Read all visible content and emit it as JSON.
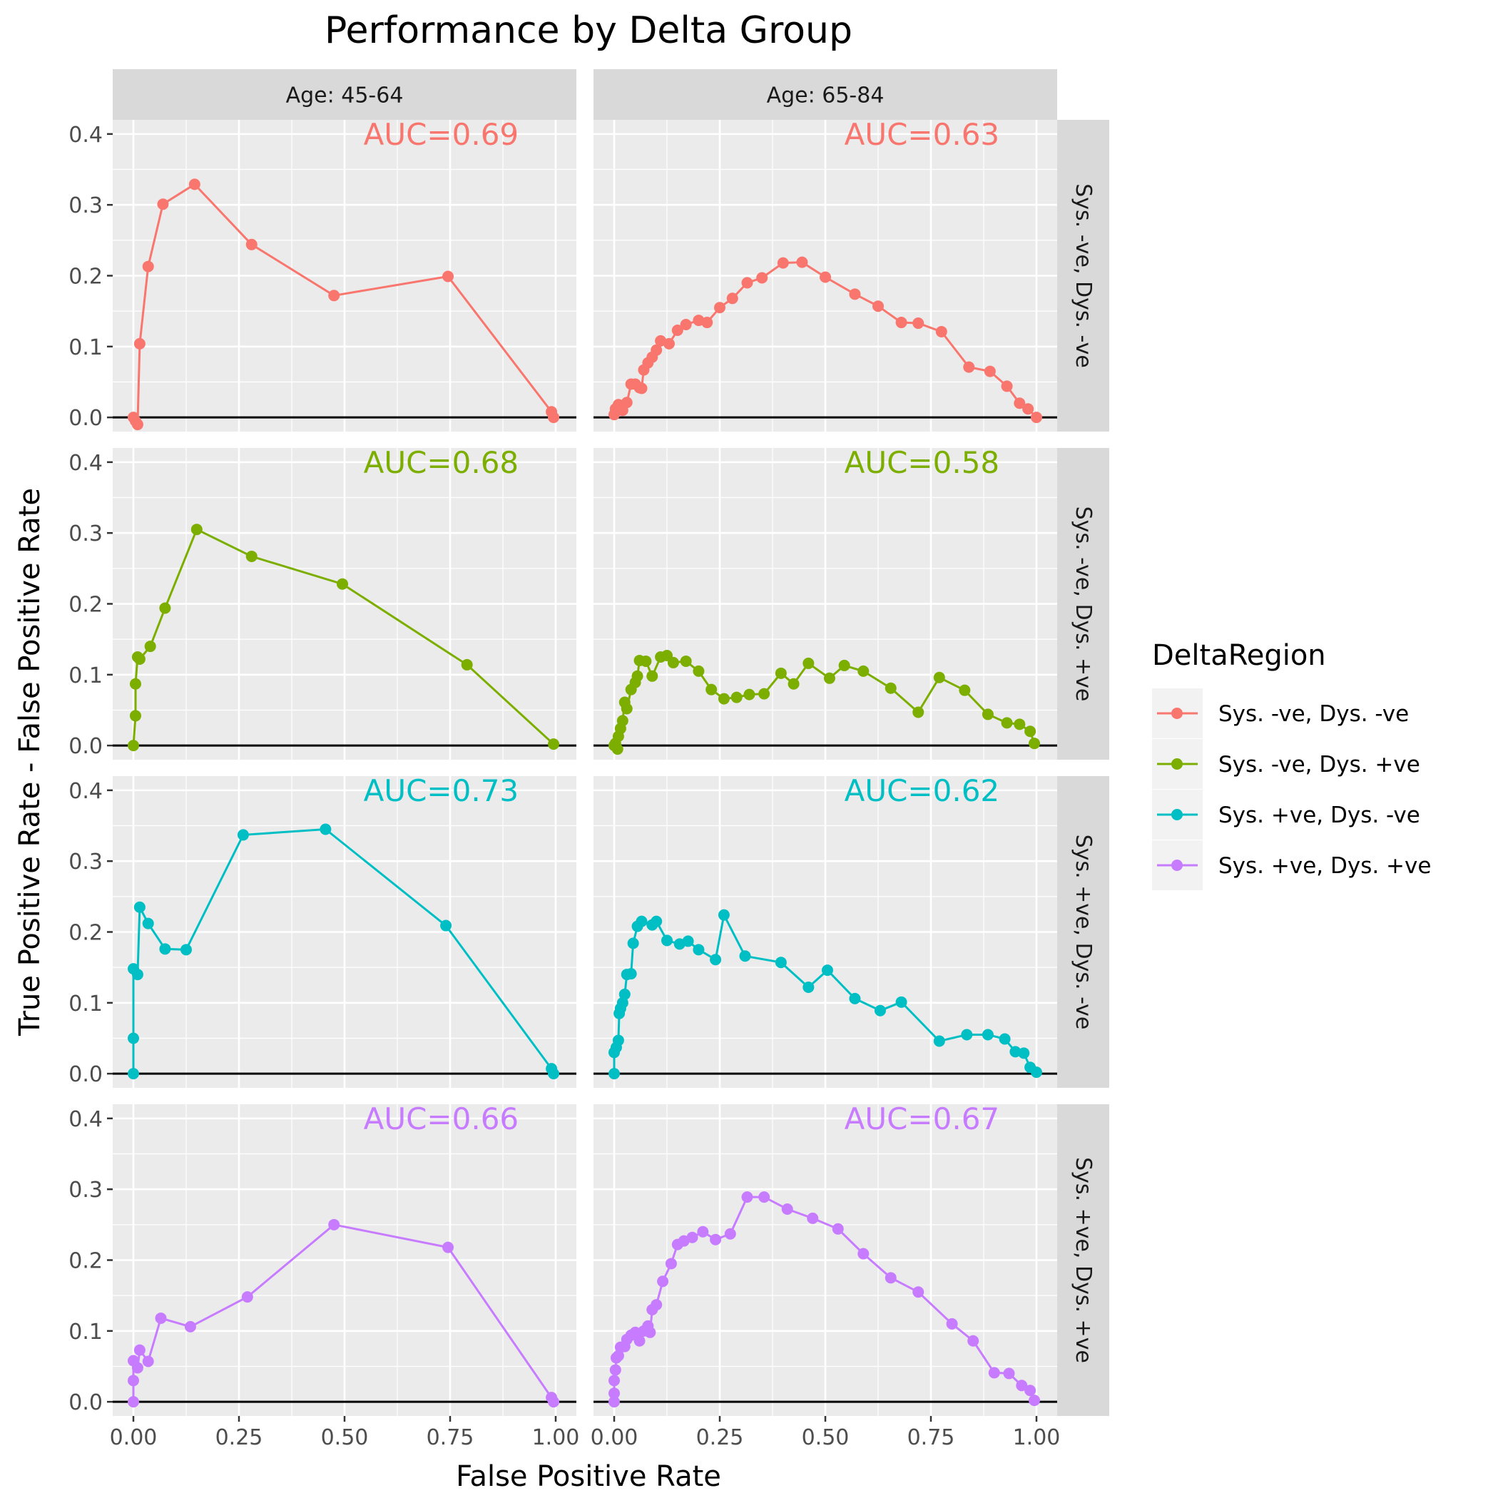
{
  "chart_data": {
    "type": "line",
    "title": "Performance by Delta Group",
    "xlabel": "False Positive Rate",
    "ylabel": "True Positive Rate - False Positive Rate",
    "xlim": [
      0,
      1
    ],
    "ylim": [
      -0.02,
      0.42
    ],
    "x_ticks": [
      "0.00",
      "0.25",
      "0.50",
      "0.75",
      "1.00"
    ],
    "y_ticks": [
      "0.0",
      "0.1",
      "0.2",
      "0.3",
      "0.4"
    ],
    "grid": true,
    "reference_line_y": 0,
    "facet_columns": [
      "Age: 45-64",
      "Age: 65-84"
    ],
    "facet_rows": [
      "Sys. -ve, Dys. -ve",
      "Sys. -ve, Dys. +ve",
      "Sys. +ve, Dys. -ve",
      "Sys. +ve, Dys. +ve"
    ],
    "legend": {
      "title": "DeltaRegion",
      "placement": "right",
      "entries": [
        {
          "label": "Sys. -ve, Dys. -ve",
          "color": "#F8766D"
        },
        {
          "label": "Sys. -ve, Dys. +ve",
          "color": "#7CAE00"
        },
        {
          "label": "Sys. +ve, Dys. -ve",
          "color": "#00BFC4"
        },
        {
          "label": "Sys. +ve, Dys. +ve",
          "color": "#C77CFF"
        }
      ]
    },
    "panels": [
      {
        "row": 0,
        "col": 0,
        "auc": "AUC=0.69",
        "points": [
          [
            0,
            0
          ],
          [
            0.005,
            -0.005
          ],
          [
            0.01,
            -0.01
          ],
          [
            0.015,
            0.104
          ],
          [
            0.035,
            0.213
          ],
          [
            0.07,
            0.301
          ],
          [
            0.145,
            0.329
          ],
          [
            0.28,
            0.244
          ],
          [
            0.475,
            0.172
          ],
          [
            0.745,
            0.199
          ],
          [
            0.99,
            0.008
          ],
          [
            0.995,
            0
          ]
        ]
      },
      {
        "row": 0,
        "col": 1,
        "auc": "AUC=0.63",
        "points": [
          [
            0,
            0.004
          ],
          [
            0.003,
            0.012
          ],
          [
            0.01,
            0.018
          ],
          [
            0.02,
            0.01
          ],
          [
            0.03,
            0.021
          ],
          [
            0.04,
            0.047
          ],
          [
            0.05,
            0.047
          ],
          [
            0.06,
            0.042
          ],
          [
            0.065,
            0.041
          ],
          [
            0.07,
            0.067
          ],
          [
            0.08,
            0.077
          ],
          [
            0.09,
            0.085
          ],
          [
            0.1,
            0.095
          ],
          [
            0.11,
            0.108
          ],
          [
            0.13,
            0.104
          ],
          [
            0.15,
            0.123
          ],
          [
            0.17,
            0.131
          ],
          [
            0.2,
            0.137
          ],
          [
            0.22,
            0.134
          ],
          [
            0.25,
            0.155
          ],
          [
            0.28,
            0.168
          ],
          [
            0.315,
            0.19
          ],
          [
            0.35,
            0.197
          ],
          [
            0.4,
            0.218
          ],
          [
            0.445,
            0.219
          ],
          [
            0.5,
            0.198
          ],
          [
            0.57,
            0.174
          ],
          [
            0.625,
            0.157
          ],
          [
            0.68,
            0.134
          ],
          [
            0.72,
            0.133
          ],
          [
            0.775,
            0.121
          ],
          [
            0.84,
            0.071
          ],
          [
            0.89,
            0.065
          ],
          [
            0.93,
            0.044
          ],
          [
            0.96,
            0.02
          ],
          [
            0.98,
            0.012
          ],
          [
            1.0,
            0
          ]
        ]
      },
      {
        "row": 1,
        "col": 0,
        "auc": "AUC=0.68",
        "points": [
          [
            0,
            0
          ],
          [
            0.005,
            0.042
          ],
          [
            0.005,
            0.087
          ],
          [
            0.01,
            0.125
          ],
          [
            0.015,
            0.122
          ],
          [
            0.04,
            0.14
          ],
          [
            0.075,
            0.194
          ],
          [
            0.15,
            0.305
          ],
          [
            0.28,
            0.267
          ],
          [
            0.495,
            0.228
          ],
          [
            0.79,
            0.114
          ],
          [
            0.995,
            0.002
          ]
        ]
      },
      {
        "row": 1,
        "col": 1,
        "auc": "AUC=0.58",
        "points": [
          [
            0,
            0
          ],
          [
            0.003,
            0.003
          ],
          [
            0.008,
            -0.005
          ],
          [
            0.01,
            0.013
          ],
          [
            0.015,
            0.024
          ],
          [
            0.02,
            0.035
          ],
          [
            0.025,
            0.061
          ],
          [
            0.03,
            0.052
          ],
          [
            0.04,
            0.079
          ],
          [
            0.05,
            0.089
          ],
          [
            0.055,
            0.098
          ],
          [
            0.06,
            0.12
          ],
          [
            0.075,
            0.119
          ],
          [
            0.09,
            0.098
          ],
          [
            0.11,
            0.125
          ],
          [
            0.125,
            0.127
          ],
          [
            0.14,
            0.117
          ],
          [
            0.17,
            0.119
          ],
          [
            0.2,
            0.105
          ],
          [
            0.23,
            0.079
          ],
          [
            0.26,
            0.066
          ],
          [
            0.29,
            0.068
          ],
          [
            0.32,
            0.072
          ],
          [
            0.355,
            0.073
          ],
          [
            0.395,
            0.102
          ],
          [
            0.425,
            0.087
          ],
          [
            0.46,
            0.116
          ],
          [
            0.51,
            0.095
          ],
          [
            0.545,
            0.113
          ],
          [
            0.59,
            0.105
          ],
          [
            0.655,
            0.081
          ],
          [
            0.72,
            0.047
          ],
          [
            0.77,
            0.096
          ],
          [
            0.83,
            0.078
          ],
          [
            0.885,
            0.044
          ],
          [
            0.93,
            0.032
          ],
          [
            0.96,
            0.03
          ],
          [
            0.985,
            0.02
          ],
          [
            0.995,
            0.003
          ]
        ]
      },
      {
        "row": 2,
        "col": 0,
        "auc": "AUC=0.73",
        "points": [
          [
            0,
            0
          ],
          [
            0,
            0.05
          ],
          [
            0,
            0.148
          ],
          [
            0.01,
            0.14
          ],
          [
            0.015,
            0.235
          ],
          [
            0.035,
            0.212
          ],
          [
            0.075,
            0.176
          ],
          [
            0.125,
            0.175
          ],
          [
            0.26,
            0.337
          ],
          [
            0.455,
            0.345
          ],
          [
            0.74,
            0.209
          ],
          [
            0.99,
            0.007
          ],
          [
            0.995,
            0
          ]
        ]
      },
      {
        "row": 2,
        "col": 1,
        "auc": "AUC=0.62",
        "points": [
          [
            0,
            0
          ],
          [
            0,
            0.03
          ],
          [
            0.005,
            0.037
          ],
          [
            0.01,
            0.047
          ],
          [
            0.012,
            0.085
          ],
          [
            0.015,
            0.092
          ],
          [
            0.02,
            0.1
          ],
          [
            0.025,
            0.112
          ],
          [
            0.03,
            0.14
          ],
          [
            0.04,
            0.141
          ],
          [
            0.045,
            0.184
          ],
          [
            0.055,
            0.208
          ],
          [
            0.065,
            0.215
          ],
          [
            0.09,
            0.21
          ],
          [
            0.1,
            0.215
          ],
          [
            0.125,
            0.188
          ],
          [
            0.155,
            0.183
          ],
          [
            0.175,
            0.187
          ],
          [
            0.2,
            0.175
          ],
          [
            0.24,
            0.161
          ],
          [
            0.26,
            0.224
          ],
          [
            0.31,
            0.166
          ],
          [
            0.395,
            0.157
          ],
          [
            0.46,
            0.122
          ],
          [
            0.505,
            0.146
          ],
          [
            0.57,
            0.106
          ],
          [
            0.63,
            0.089
          ],
          [
            0.68,
            0.101
          ],
          [
            0.77,
            0.046
          ],
          [
            0.835,
            0.055
          ],
          [
            0.885,
            0.055
          ],
          [
            0.925,
            0.049
          ],
          [
            0.95,
            0.031
          ],
          [
            0.97,
            0.029
          ],
          [
            0.985,
            0.009
          ],
          [
            1.0,
            0.002
          ]
        ]
      },
      {
        "row": 3,
        "col": 0,
        "auc": "AUC=0.66",
        "points": [
          [
            0,
            0
          ],
          [
            0,
            0.03
          ],
          [
            0,
            0.058
          ],
          [
            0.01,
            0.048
          ],
          [
            0.015,
            0.073
          ],
          [
            0.035,
            0.057
          ],
          [
            0.065,
            0.118
          ],
          [
            0.135,
            0.106
          ],
          [
            0.27,
            0.148
          ],
          [
            0.475,
            0.25
          ],
          [
            0.745,
            0.218
          ],
          [
            0.99,
            0.006
          ],
          [
            0.995,
            0
          ]
        ]
      },
      {
        "row": 3,
        "col": 1,
        "auc": "AUC=0.67",
        "points": [
          [
            0,
            0
          ],
          [
            0,
            0.012
          ],
          [
            0,
            0.03
          ],
          [
            0.003,
            0.045
          ],
          [
            0.005,
            0.062
          ],
          [
            0.01,
            0.065
          ],
          [
            0.015,
            0.077
          ],
          [
            0.025,
            0.078
          ],
          [
            0.03,
            0.088
          ],
          [
            0.04,
            0.094
          ],
          [
            0.05,
            0.098
          ],
          [
            0.06,
            0.086
          ],
          [
            0.07,
            0.1
          ],
          [
            0.08,
            0.107
          ],
          [
            0.085,
            0.098
          ],
          [
            0.09,
            0.13
          ],
          [
            0.1,
            0.137
          ],
          [
            0.115,
            0.17
          ],
          [
            0.135,
            0.195
          ],
          [
            0.15,
            0.222
          ],
          [
            0.165,
            0.227
          ],
          [
            0.185,
            0.232
          ],
          [
            0.21,
            0.24
          ],
          [
            0.24,
            0.229
          ],
          [
            0.275,
            0.237
          ],
          [
            0.315,
            0.289
          ],
          [
            0.355,
            0.289
          ],
          [
            0.41,
            0.272
          ],
          [
            0.47,
            0.259
          ],
          [
            0.53,
            0.244
          ],
          [
            0.59,
            0.209
          ],
          [
            0.655,
            0.175
          ],
          [
            0.72,
            0.155
          ],
          [
            0.8,
            0.11
          ],
          [
            0.85,
            0.086
          ],
          [
            0.9,
            0.041
          ],
          [
            0.935,
            0.04
          ],
          [
            0.965,
            0.023
          ],
          [
            0.985,
            0.016
          ],
          [
            0.995,
            0.002
          ]
        ]
      }
    ]
  }
}
